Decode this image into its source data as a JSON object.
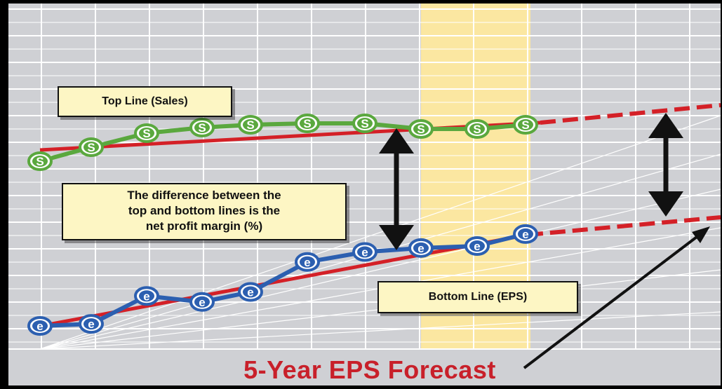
{
  "labels": {
    "top_line": "Top Line (Sales)",
    "bottom_line": "Bottom Line (EPS)",
    "note_line1": "The difference between the",
    "note_line2": "top and bottom lines is the",
    "note_line3": "net profit margin (%)",
    "forecast": "5-Year EPS Forecast"
  },
  "markers": {
    "sales_symbol": "S",
    "eps_symbol": "e"
  },
  "colors": {
    "background": "#cfd0d4",
    "grid": "#ffffff",
    "highlight_band": "#fbe7a1",
    "trend_red": "#d42027",
    "sales_green": "#5aa83e",
    "eps_blue": "#2c5fb0",
    "label_fill": "#fdf6c4",
    "forecast_text": "#c8202a"
  },
  "chart_data": {
    "type": "line",
    "series": [
      {
        "values": [
          0.0,
          1.0,
          2.0,
          2.4,
          2.6,
          2.7,
          2.7,
          2.3,
          2.3,
          2.6
        ]
      },
      {
        "values": [
          0.0,
          0.1,
          1.5,
          1.2,
          1.7,
          3.2,
          3.7,
          3.9,
          4.0,
          4.6
        ]
      }
    ]
  }
}
